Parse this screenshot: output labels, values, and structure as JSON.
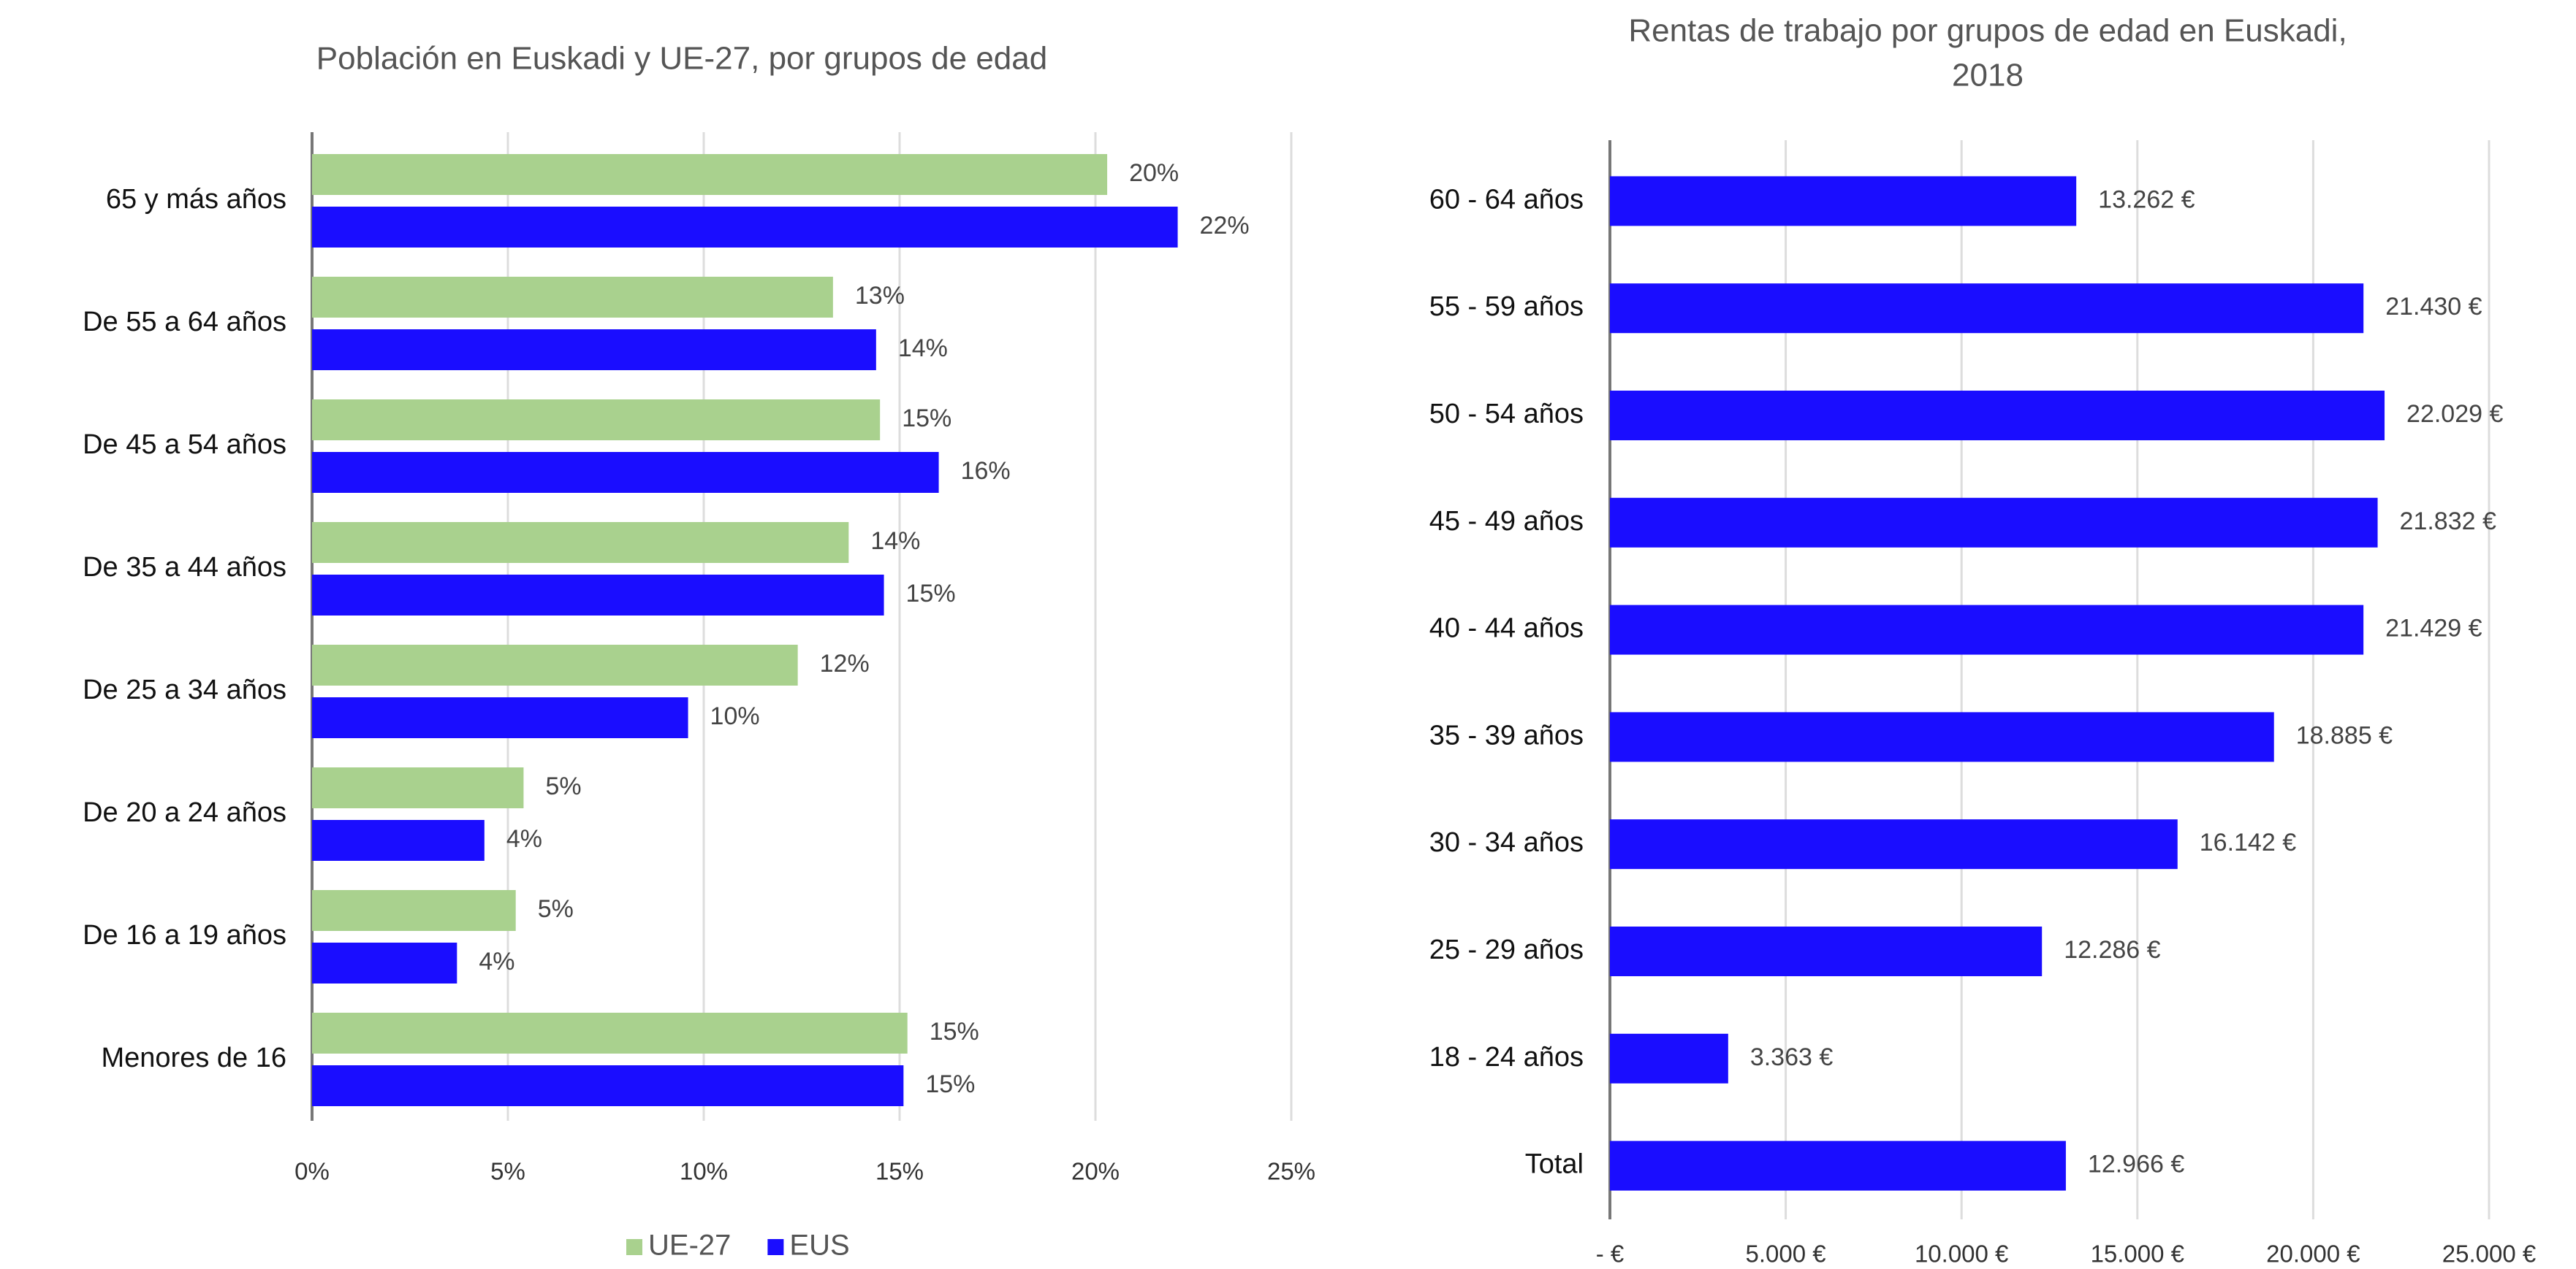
{
  "chart_data": [
    {
      "type": "hbar",
      "title": "Población en Euskadi y UE-27, por grupos de edad",
      "categories": [
        "65 y más años",
        "De 55 a 64 años",
        "De 45 a 54 años",
        "De 35 a 44 años",
        "De 25 a 34 años",
        "De 20 a 24 años",
        "De 16 a 19 años",
        "Menores de 16"
      ],
      "series": [
        {
          "name": "UE-27",
          "color": "#a9d18e",
          "values": [
            20.3,
            13.3,
            14.5,
            13.7,
            12.4,
            5.4,
            5.2,
            15.2
          ],
          "value_labels": [
            "20%",
            "13%",
            "15%",
            "14%",
            "12%",
            "5%",
            "5%",
            "15%"
          ]
        },
        {
          "name": "EUS",
          "color": "#1a0dff",
          "values": [
            22.1,
            14.4,
            16.0,
            14.6,
            9.6,
            4.4,
            3.7,
            15.1
          ],
          "value_labels": [
            "22%",
            "14%",
            "16%",
            "15%",
            "10%",
            "4%",
            "4%",
            "15%"
          ]
        }
      ],
      "xlim": [
        0,
        25
      ],
      "xticks": [
        {
          "value": 0,
          "label": "0%"
        },
        {
          "value": 5,
          "label": "5%"
        },
        {
          "value": 10,
          "label": "10%"
        },
        {
          "value": 15,
          "label": "15%"
        },
        {
          "value": 20,
          "label": "20%"
        },
        {
          "value": 25,
          "label": "25%"
        }
      ],
      "grid": true,
      "legend": "bottom"
    },
    {
      "type": "hbar",
      "title": [
        "Rentas de trabajo por grupos de edad en Euskadi,",
        "2018"
      ],
      "categories": [
        "60 - 64 años",
        "55 - 59 años",
        "50 - 54 años",
        "45 - 49 años",
        "40 - 44 años",
        "35 - 39 años",
        "30 - 34 años",
        "25 - 29 años",
        "18 - 24 años",
        "Total"
      ],
      "values": [
        13262,
        21430,
        22029,
        21832,
        21429,
        18885,
        16142,
        12286,
        3363,
        12966
      ],
      "value_labels": [
        "13.262 €",
        "21.430 €",
        "22.029 €",
        "21.832 €",
        "21.429 €",
        "18.885 €",
        "16.142 €",
        "12.286 €",
        "3.363 €",
        "12.966 €"
      ],
      "color": "#1a0dff",
      "xlim": [
        0,
        25000
      ],
      "xticks": [
        {
          "value": 0,
          "label": "-  €"
        },
        {
          "value": 5000,
          "label": "5.000 €"
        },
        {
          "value": 10000,
          "label": "10.000 €"
        },
        {
          "value": 15000,
          "label": "15.000 €"
        },
        {
          "value": 20000,
          "label": "20.000 €"
        },
        {
          "value": 25000,
          "label": "25.000 €"
        }
      ],
      "grid": true
    }
  ]
}
